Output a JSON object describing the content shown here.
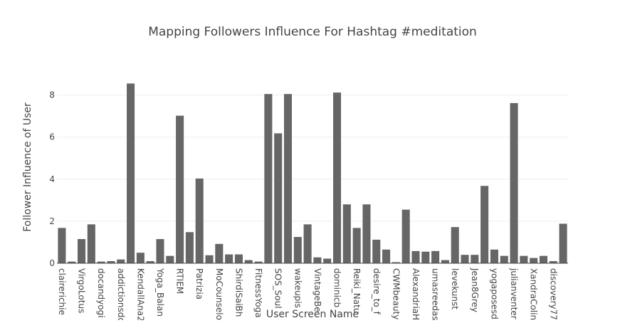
{
  "chart_data": {
    "type": "bar",
    "title": "Mapping Followers Influence For Hashtag #meditation",
    "xlabel": "User Screen Name",
    "ylabel": "Follower Influence of User",
    "ylim": [
      0,
      8.8
    ],
    "yticks": [
      0,
      2,
      4,
      6,
      8
    ],
    "grid": true,
    "bar_color": "#666666",
    "categories": [
      "clairerichie",
      "",
      "VirgoLotus",
      "",
      "docandyogi",
      "",
      "addictionsdc",
      "",
      "KendallAna2",
      "",
      "Yoga_Balan",
      "",
      "RTIEM",
      "",
      "Patrizia",
      "",
      "MoCounselo",
      "",
      "ShirdiSaiBh",
      "",
      "FitnessYoga",
      "",
      "SOS_Soul",
      "",
      "wakeupis",
      "",
      "VintageBe",
      "",
      "dominicb",
      "",
      "Reiki_Natu",
      "",
      "desire_to_f",
      "",
      "CWMbeauty",
      "",
      "AlexandriaH",
      "",
      "umasreedas",
      "",
      "levekunst",
      "",
      "Jean8Grey",
      "",
      "yogaposesd",
      "",
      "julianventer",
      "",
      "XandraColin",
      "",
      "discovery77",
      ""
    ],
    "values": [
      1.68,
      0.08,
      1.15,
      1.85,
      0.08,
      0.1,
      0.18,
      8.55,
      0.5,
      0.1,
      1.15,
      0.35,
      7.02,
      1.48,
      4.03,
      0.38,
      0.92,
      0.42,
      0.42,
      0.15,
      0.08,
      8.05,
      6.18,
      8.05,
      1.25,
      1.85,
      0.28,
      0.22,
      8.12,
      2.8,
      1.68,
      2.8,
      1.12,
      0.65,
      0.05,
      2.55,
      0.58,
      0.55,
      0.58,
      0.15,
      1.72,
      0.4,
      0.4,
      3.68,
      0.65,
      0.35,
      7.62,
      0.35,
      0.25,
      0.35,
      0.1,
      1.88
    ]
  }
}
